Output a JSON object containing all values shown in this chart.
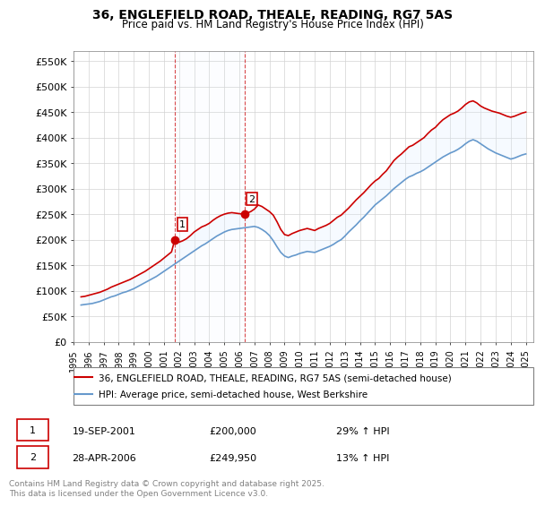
{
  "title": "36, ENGLEFIELD ROAD, THEALE, READING, RG7 5AS",
  "subtitle": "Price paid vs. HM Land Registry's House Price Index (HPI)",
  "ylabel_ticks": [
    "£0",
    "£50K",
    "£100K",
    "£150K",
    "£200K",
    "£250K",
    "£300K",
    "£350K",
    "£400K",
    "£450K",
    "£500K",
    "£550K"
  ],
  "ylim": [
    0,
    570000
  ],
  "xlim_start": 1995.0,
  "xlim_end": 2025.5,
  "red_color": "#cc0000",
  "blue_color": "#6699cc",
  "shade_color": "#ddeeff",
  "vline_color": "#cc0000",
  "transaction1_x": 2001.72,
  "transaction1_y": 200000,
  "transaction1_label": "1",
  "transaction2_x": 2006.33,
  "transaction2_y": 249950,
  "transaction2_label": "2",
  "legend_line1": "36, ENGLEFIELD ROAD, THEALE, READING, RG7 5AS (semi-detached house)",
  "legend_line2": "HPI: Average price, semi-detached house, West Berkshire",
  "table_row1": [
    "1",
    "19-SEP-2001",
    "£200,000",
    "29% ↑ HPI"
  ],
  "table_row2": [
    "2",
    "28-APR-2006",
    "£249,950",
    "13% ↑ HPI"
  ],
  "footer": "Contains HM Land Registry data © Crown copyright and database right 2025.\nThis data is licensed under the Open Government Licence v3.0.",
  "red_x": [
    1995.5,
    1995.75,
    1996.0,
    1996.25,
    1996.5,
    1996.75,
    1997.0,
    1997.25,
    1997.5,
    1997.75,
    1998.0,
    1998.25,
    1998.5,
    1998.75,
    1999.0,
    1999.25,
    1999.5,
    1999.75,
    2000.0,
    2000.25,
    2000.5,
    2000.75,
    2001.0,
    2001.25,
    2001.5,
    2001.72,
    2002.0,
    2002.25,
    2002.5,
    2002.75,
    2003.0,
    2003.25,
    2003.5,
    2003.75,
    2004.0,
    2004.25,
    2004.5,
    2004.75,
    2005.0,
    2005.25,
    2005.5,
    2005.75,
    2006.0,
    2006.33,
    2006.5,
    2006.75,
    2007.0,
    2007.25,
    2007.5,
    2007.75,
    2008.0,
    2008.25,
    2008.5,
    2008.75,
    2009.0,
    2009.25,
    2009.5,
    2009.75,
    2010.0,
    2010.25,
    2010.5,
    2010.75,
    2011.0,
    2011.25,
    2011.5,
    2011.75,
    2012.0,
    2012.25,
    2012.5,
    2012.75,
    2013.0,
    2013.25,
    2013.5,
    2013.75,
    2014.0,
    2014.25,
    2014.5,
    2014.75,
    2015.0,
    2015.25,
    2015.5,
    2015.75,
    2016.0,
    2016.25,
    2016.5,
    2016.75,
    2017.0,
    2017.25,
    2017.5,
    2017.75,
    2018.0,
    2018.25,
    2018.5,
    2018.75,
    2019.0,
    2019.25,
    2019.5,
    2019.75,
    2020.0,
    2020.25,
    2020.5,
    2020.75,
    2021.0,
    2021.25,
    2021.5,
    2021.75,
    2022.0,
    2022.25,
    2022.5,
    2022.75,
    2023.0,
    2023.25,
    2023.5,
    2023.75,
    2024.0,
    2024.25,
    2024.5,
    2024.75,
    2025.0
  ],
  "red_y": [
    88000,
    89000,
    91000,
    93000,
    95000,
    97000,
    100000,
    103000,
    107000,
    110000,
    113000,
    116000,
    119000,
    122000,
    126000,
    130000,
    134000,
    138000,
    143000,
    148000,
    153000,
    158000,
    164000,
    170000,
    176000,
    200000,
    195000,
    198000,
    202000,
    208000,
    215000,
    220000,
    225000,
    228000,
    232000,
    238000,
    243000,
    247000,
    250000,
    252000,
    253000,
    252000,
    251000,
    249950,
    252000,
    255000,
    260000,
    268000,
    265000,
    260000,
    255000,
    248000,
    235000,
    220000,
    210000,
    208000,
    212000,
    215000,
    218000,
    220000,
    222000,
    220000,
    218000,
    222000,
    225000,
    228000,
    232000,
    238000,
    244000,
    248000,
    255000,
    262000,
    270000,
    278000,
    285000,
    292000,
    300000,
    308000,
    315000,
    320000,
    328000,
    335000,
    345000,
    355000,
    362000,
    368000,
    375000,
    382000,
    385000,
    390000,
    395000,
    400000,
    408000,
    415000,
    420000,
    428000,
    435000,
    440000,
    445000,
    448000,
    452000,
    458000,
    465000,
    470000,
    472000,
    468000,
    462000,
    458000,
    455000,
    452000,
    450000,
    448000,
    445000,
    442000,
    440000,
    442000,
    445000,
    448000,
    450000
  ],
  "blue_x": [
    1995.5,
    1995.75,
    1996.0,
    1996.25,
    1996.5,
    1996.75,
    1997.0,
    1997.25,
    1997.5,
    1997.75,
    1998.0,
    1998.25,
    1998.5,
    1998.75,
    1999.0,
    1999.25,
    1999.5,
    1999.75,
    2000.0,
    2000.25,
    2000.5,
    2000.75,
    2001.0,
    2001.25,
    2001.5,
    2001.75,
    2002.0,
    2002.25,
    2002.5,
    2002.75,
    2003.0,
    2003.25,
    2003.5,
    2003.75,
    2004.0,
    2004.25,
    2004.5,
    2004.75,
    2005.0,
    2005.25,
    2005.5,
    2005.75,
    2006.0,
    2006.25,
    2006.5,
    2006.75,
    2007.0,
    2007.25,
    2007.5,
    2007.75,
    2008.0,
    2008.25,
    2008.5,
    2008.75,
    2009.0,
    2009.25,
    2009.5,
    2009.75,
    2010.0,
    2010.25,
    2010.5,
    2010.75,
    2011.0,
    2011.25,
    2011.5,
    2011.75,
    2012.0,
    2012.25,
    2012.5,
    2012.75,
    2013.0,
    2013.25,
    2013.5,
    2013.75,
    2014.0,
    2014.25,
    2014.5,
    2014.75,
    2015.0,
    2015.25,
    2015.5,
    2015.75,
    2016.0,
    2016.25,
    2016.5,
    2016.75,
    2017.0,
    2017.25,
    2017.5,
    2017.75,
    2018.0,
    2018.25,
    2018.5,
    2018.75,
    2019.0,
    2019.25,
    2019.5,
    2019.75,
    2020.0,
    2020.25,
    2020.5,
    2020.75,
    2021.0,
    2021.25,
    2021.5,
    2021.75,
    2022.0,
    2022.25,
    2022.5,
    2022.75,
    2023.0,
    2023.25,
    2023.5,
    2023.75,
    2024.0,
    2024.25,
    2024.5,
    2024.75,
    2025.0
  ],
  "blue_y": [
    72000,
    73000,
    74000,
    75000,
    77000,
    79000,
    82000,
    85000,
    88000,
    90000,
    93000,
    96000,
    98000,
    101000,
    104000,
    108000,
    112000,
    116000,
    120000,
    124000,
    128000,
    133000,
    138000,
    143000,
    148000,
    153000,
    158000,
    163000,
    168000,
    173000,
    178000,
    183000,
    188000,
    192000,
    197000,
    202000,
    207000,
    211000,
    215000,
    218000,
    220000,
    221000,
    222000,
    223000,
    224000,
    225000,
    226000,
    224000,
    220000,
    215000,
    208000,
    198000,
    186000,
    175000,
    168000,
    165000,
    168000,
    170000,
    173000,
    175000,
    177000,
    176000,
    175000,
    178000,
    181000,
    184000,
    187000,
    191000,
    196000,
    200000,
    207000,
    215000,
    222000,
    229000,
    237000,
    244000,
    252000,
    260000,
    268000,
    274000,
    280000,
    286000,
    293000,
    300000,
    306000,
    312000,
    318000,
    323000,
    326000,
    330000,
    333000,
    337000,
    342000,
    347000,
    352000,
    357000,
    362000,
    366000,
    370000,
    373000,
    377000,
    382000,
    388000,
    393000,
    396000,
    393000,
    388000,
    383000,
    378000,
    374000,
    370000,
    367000,
    364000,
    361000,
    358000,
    360000,
    363000,
    366000,
    368000
  ]
}
